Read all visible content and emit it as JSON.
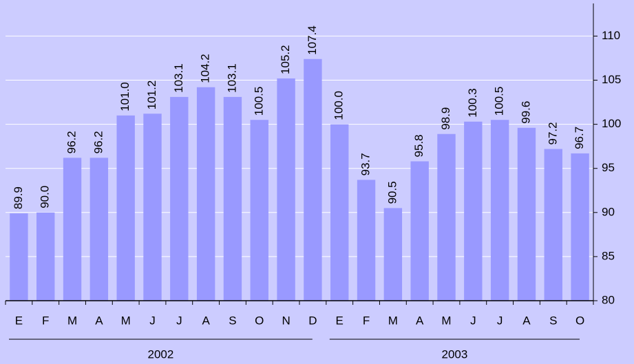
{
  "chart_data": {
    "type": "bar",
    "categories": [
      "E",
      "F",
      "M",
      "A",
      "M",
      "J",
      "J",
      "A",
      "S",
      "O",
      "N",
      "D",
      "E",
      "F",
      "M",
      "A",
      "M",
      "J",
      "J",
      "A",
      "S",
      "O"
    ],
    "values": [
      89.9,
      90.0,
      96.2,
      96.2,
      101.0,
      101.2,
      103.1,
      104.2,
      103.1,
      100.5,
      105.2,
      107.4,
      100.0,
      93.7,
      90.5,
      95.8,
      98.9,
      100.3,
      100.5,
      99.6,
      97.2,
      96.7
    ],
    "value_labels": [
      "89.9",
      "90.0",
      "96.2",
      "96.2",
      "101.0",
      "101.2",
      "103.1",
      "104.2",
      "103.1",
      "100.5",
      "105.2",
      "107.4",
      "100.0",
      "93.7",
      "90.5",
      "95.8",
      "98.9",
      "100.3",
      "100.5",
      "99.6",
      "97.2",
      "96.7"
    ],
    "groups": [
      {
        "name": "2002",
        "size": 12
      },
      {
        "name": "2003",
        "size": 10
      }
    ],
    "color": "#9999ff",
    "background": "#ccccff",
    "ylim": [
      80,
      113.7
    ],
    "yticks": [
      80,
      85,
      90,
      95,
      100,
      105,
      110
    ],
    "grid": true,
    "y_axis_side": "right"
  }
}
